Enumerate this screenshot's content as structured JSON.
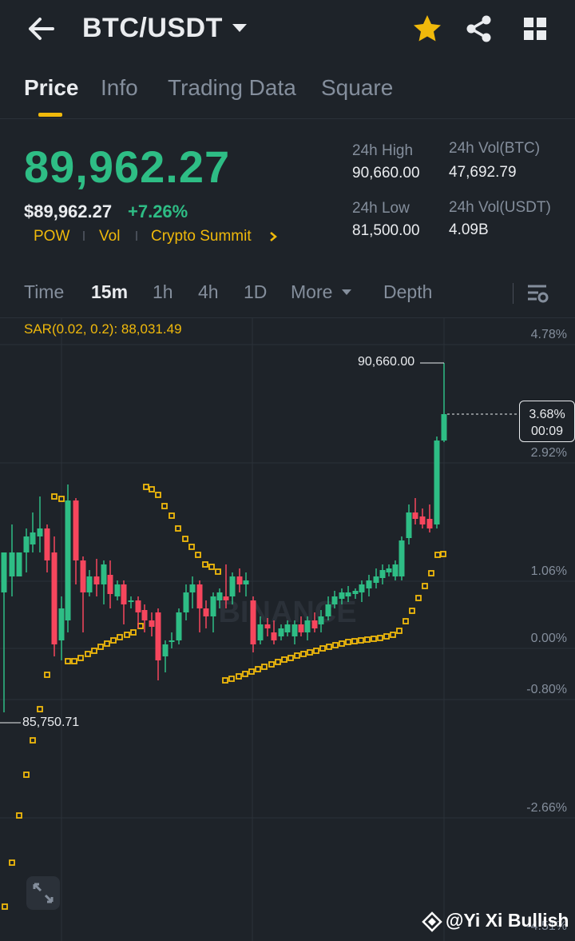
{
  "header": {
    "title": "BTC/USDT"
  },
  "tabs": [
    "Price",
    "Info",
    "Trading Data",
    "Square"
  ],
  "ticker": {
    "last_price": "89,962.27",
    "usd_price": "$89,962.27",
    "change_pct": "+7.26%",
    "tags": [
      "POW",
      "Vol",
      "Crypto Summit"
    ],
    "stats": {
      "high_label": "24h High",
      "high_value": "90,660.00",
      "low_label": "24h Low",
      "low_value": "81,500.00",
      "vol_btc_label": "24h Vol(BTC)",
      "vol_btc_value": "47,692.79",
      "vol_usdt_label": "24h Vol(USDT)",
      "vol_usdt_value": "4.09B"
    }
  },
  "timeframes": {
    "items": [
      "Time",
      "15m",
      "1h",
      "4h",
      "1D"
    ],
    "active": "15m",
    "more_label": "More",
    "depth_label": "Depth"
  },
  "indicator": {
    "label": "SAR(0.02, 0.2): 88,031.49"
  },
  "chart": {
    "y_labels": [
      "4.78%",
      "2.92%",
      "1.06%",
      "0.00%",
      "-0.80%",
      "-2.66%",
      "-4.51%"
    ],
    "current_change": "3.68%",
    "countdown": "00:09",
    "high_marker": "90,660.00",
    "low_marker": "85,750.71",
    "watermark_logo": "BINANCE",
    "colors": {
      "up": "#2ebd85",
      "down": "#f6465d",
      "sar": "#f0b90b"
    }
  },
  "chart_data": {
    "type": "candlestick",
    "title": "",
    "interval": "15m",
    "y_axis": "percent change",
    "indicator": "SAR(0.02, 0.2)",
    "high": 90660.0,
    "low": 85750.71,
    "last": 89962.27
  },
  "footer": {
    "credit": "@Yi Xi Bullish"
  },
  "icons": {
    "back": "arrow-left-icon",
    "favorite": "star-icon",
    "share": "share-icon",
    "apps": "grid-icon",
    "settings": "chart-settings-icon",
    "expand": "expand-icon"
  }
}
